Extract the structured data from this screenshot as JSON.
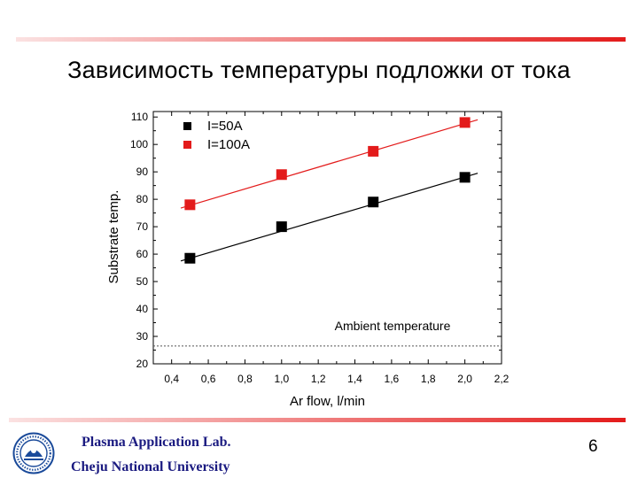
{
  "slide": {
    "title": "Зависимость температуры подложки от тока",
    "lab_name": "Plasma Application Lab.",
    "university": "Cheju National University",
    "page_number": "6"
  },
  "chart_data": {
    "type": "scatter",
    "xlabel": "Ar flow, l/min",
    "ylabel": "Substrate temp.",
    "xlim": [
      0.3,
      2.2
    ],
    "ylim": [
      20,
      112
    ],
    "x_ticks": [
      "0,4",
      "0,6",
      "0,8",
      "1,0",
      "1,2",
      "1,4",
      "1,6",
      "1,8",
      "2,0",
      "2,2"
    ],
    "x_tick_values": [
      0.4,
      0.6,
      0.8,
      1.0,
      1.2,
      1.4,
      1.6,
      1.8,
      2.0,
      2.2
    ],
    "y_ticks": [
      20,
      30,
      40,
      50,
      60,
      70,
      80,
      90,
      100,
      110
    ],
    "legend_position": "top-left",
    "series": [
      {
        "name": "I=50A",
        "color": "#000000",
        "x": [
          0.5,
          1.0,
          1.5,
          2.0
        ],
        "y": [
          58.5,
          70,
          79,
          88
        ],
        "fit": {
          "x": [
            0.45,
            2.07
          ],
          "y": [
            57.5,
            89.5
          ]
        }
      },
      {
        "name": "I=100A",
        "color": "#e31b1b",
        "x": [
          0.5,
          1.0,
          1.5,
          2.0
        ],
        "y": [
          78,
          89,
          97.5,
          108
        ],
        "fit": {
          "x": [
            0.45,
            2.07
          ],
          "y": [
            76.8,
            109
          ]
        }
      }
    ],
    "reference_line": {
      "y": 26.5,
      "label": "Ambient temperature"
    }
  }
}
